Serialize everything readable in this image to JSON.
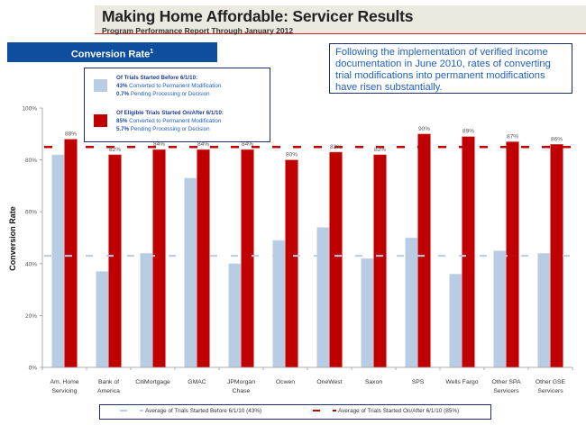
{
  "header": {
    "title": "Making Home Affordable: Servicer Results",
    "subtitle": "Program Performance Report Through January 2012"
  },
  "panel": {
    "title": "Conversion Rate",
    "footnote_marker": "1"
  },
  "note": {
    "text": "Following the implementation of verified income documentation in June 2010, rates of converting trial modifications into permanent modifications have risen substantially."
  },
  "inset_legend": {
    "before": {
      "heading": "Of Trials Started Before 6/1/10:",
      "line1_value": "43%",
      "line1_text": " Converted to Permanent Modification",
      "line2_value": "0.7%",
      "line2_text": " Pending Processing or Decision",
      "color": "#b8cce4"
    },
    "after": {
      "heading": "Of Eligible Trials Started On/After 6/1/10:",
      "line1_value": "85%",
      "line1_text": " Converted to Permanent  Modification",
      "line2_value": "5.7%",
      "line2_text": " Pending Processing or Decision",
      "color": "#c00000"
    }
  },
  "chart_data": {
    "type": "bar",
    "title": "Conversion Rate",
    "xlabel": "",
    "ylabel": "Conversion Rate",
    "ylim": [
      0,
      100
    ],
    "yticks": [
      "0%",
      "20%",
      "40%",
      "60%",
      "80%",
      "100%"
    ],
    "ytick_values": [
      0,
      20,
      40,
      60,
      80,
      100
    ],
    "grid": false,
    "legend_placement": "bottom",
    "categories": [
      [
        "Am. Home",
        "Servicing"
      ],
      [
        "Bank of",
        "America"
      ],
      [
        "CitiMortgage"
      ],
      [
        "GMAC"
      ],
      [
        "JPMorgan",
        "Chase"
      ],
      [
        "Ocwen"
      ],
      [
        "OneWest"
      ],
      [
        "Saxon"
      ],
      [
        "SPS"
      ],
      [
        "Wells Fargo"
      ],
      [
        "Other SPA",
        "Servicers"
      ],
      [
        "Other GSE",
        "Servicers"
      ]
    ],
    "series": [
      {
        "name": "Trials Started Before 6/1/10",
        "color": "#b8cce4",
        "values": [
          82,
          37,
          44,
          73,
          40,
          49,
          54,
          42,
          50,
          36,
          45,
          44
        ],
        "labels_shown": false
      },
      {
        "name": "Trials Started On/After 6/1/10",
        "color": "#c00000",
        "values": [
          88,
          82,
          84,
          84,
          84,
          80,
          83,
          82,
          90,
          89,
          87,
          86
        ],
        "labels": [
          "88%",
          "82%",
          "84%",
          "84%",
          "84%",
          "80%",
          "83%",
          "82%",
          "90%",
          "89%",
          "87%",
          "86%"
        ],
        "labels_shown": true
      }
    ],
    "reference_lines": [
      {
        "name": "Average of Trials Started Before 6/1/10 (43%)",
        "value": 43,
        "color": "#b8cce4",
        "style": "dashed"
      },
      {
        "name": "Average of Trials Started On/After 6/1/10 (85%)",
        "value": 85,
        "color": "#c00000",
        "style": "dashed"
      }
    ]
  },
  "bottom_legend": {
    "before_label": "Average of Trials Started Before 6/1/10 (43%)",
    "after_label": "Average of Trials Started On/After 6/1/10 (85%)"
  }
}
